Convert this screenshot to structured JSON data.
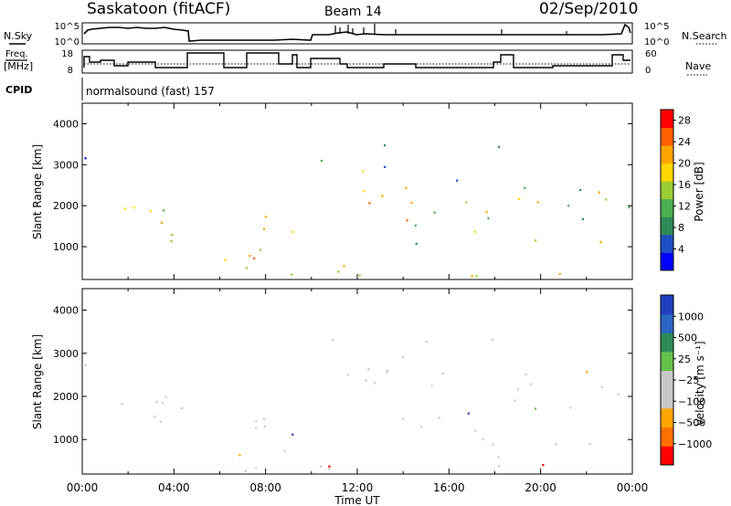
{
  "header": {
    "station": "Saskatoon (fitACF)",
    "beam": "Beam 14",
    "date": "02/Sep/2010",
    "cpid_label": "CPID",
    "cpid_text": "normalsound (fast) 157"
  },
  "noise_panel": {
    "left_label": "N.Sky",
    "left_ticks": [
      "10^5",
      "10^0"
    ],
    "right_ticks": [
      "10^5",
      "10^0"
    ],
    "right_label": "N.Search"
  },
  "freq_panel": {
    "left_label_1": "Freq.",
    "left_label_2": "[MHz]",
    "left_ticks": [
      "18",
      "8"
    ],
    "right_ticks": [
      "60",
      "0"
    ],
    "right_label": "Nave"
  },
  "colors": {
    "power": [
      "#0000ff",
      "#1f4fc4",
      "#2e8b57",
      "#4caf50",
      "#9acd32",
      "#ffd700",
      "#ffa500",
      "#ff6000",
      "#ff0000"
    ],
    "velocity": [
      "#1f3fbf",
      "#2a66c4",
      "#2e8b57",
      "#66c04a",
      "#c8c8c8",
      "#c8c8c8",
      "#ffa500",
      "#ff7000",
      "#ff0000"
    ]
  },
  "chart_data": [
    {
      "type": "heatmap",
      "quantity": "power",
      "ylabel": "Slant Range [km]",
      "yticks": [
        "1000",
        "2000",
        "3000",
        "4000"
      ],
      "ylim": [
        200,
        4500
      ],
      "xlim": [
        0,
        24
      ],
      "colorbar_label": "Power [dB]",
      "colorbar_ticks": [
        "4",
        "8",
        "12",
        "16",
        "20",
        "24",
        "28"
      ],
      "colorbar_range": [
        0,
        30
      ]
    },
    {
      "type": "heatmap",
      "quantity": "velocity",
      "ylabel": "Slant Range [km]",
      "yticks": [
        "1000",
        "2000",
        "3000",
        "4000"
      ],
      "ylim": [
        200,
        4500
      ],
      "xlim": [
        0,
        24
      ],
      "xlabel": "Time UT",
      "xticks": [
        "00:00",
        "04:00",
        "08:00",
        "12:00",
        "16:00",
        "20:00",
        "00:00"
      ],
      "colorbar_label": "Velocity [m s⁻¹]",
      "colorbar_ticks": [
        "1000",
        "500",
        "25",
        "−25",
        "−100",
        "−500",
        "−1000"
      ]
    }
  ]
}
